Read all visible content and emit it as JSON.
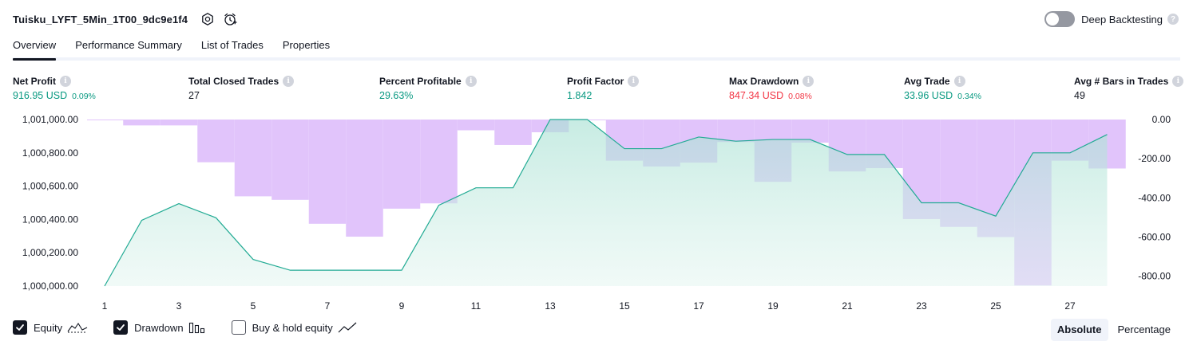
{
  "header": {
    "title": "Tuisku_LYFT_5Min_1T00_9dc9e1f4"
  },
  "deep_backtesting": {
    "label": "Deep Backtesting",
    "enabled": false
  },
  "tabs": [
    {
      "label": "Overview",
      "active": true
    },
    {
      "label": "Performance Summary",
      "active": false
    },
    {
      "label": "List of Trades",
      "active": false
    },
    {
      "label": "Properties",
      "active": false
    }
  ],
  "metrics": {
    "net_profit": {
      "label": "Net Profit",
      "value": "916.95 USD",
      "pct": "0.09%"
    },
    "total_closed_trades": {
      "label": "Total Closed Trades",
      "value": "27"
    },
    "percent_profitable": {
      "label": "Percent Profitable",
      "value": "29.63%"
    },
    "profit_factor": {
      "label": "Profit Factor",
      "value": "1.842"
    },
    "max_drawdown": {
      "label": "Max Drawdown",
      "value": "847.34 USD",
      "pct": "0.08%"
    },
    "avg_trade": {
      "label": "Avg Trade",
      "value": "33.96 USD",
      "pct": "0.34%"
    },
    "avg_bars": {
      "label": "Avg # Bars in Trades",
      "value": "49"
    }
  },
  "chart_data": {
    "type": "area",
    "x": [
      1,
      2,
      3,
      4,
      5,
      6,
      7,
      8,
      9,
      10,
      11,
      12,
      13,
      14,
      15,
      16,
      17,
      18,
      19,
      20,
      21,
      22,
      23,
      24,
      25,
      26,
      27,
      28
    ],
    "x_tick_labels": [
      "1",
      "3",
      "5",
      "7",
      "9",
      "11",
      "13",
      "15",
      "17",
      "19",
      "21",
      "23",
      "25",
      "27"
    ],
    "y_left_ticks": [
      "1,001,000.00",
      "1,000,800.00",
      "1,000,600.00",
      "1,000,400.00",
      "1,000,200.00",
      "1,000,000.00"
    ],
    "y_left_range": [
      1000000,
      1001000
    ],
    "y_right_ticks": [
      "0.00",
      "-200.00",
      "-400.00",
      "-600.00",
      "-800.00"
    ],
    "y_right_range": [
      -850,
      0
    ],
    "series": [
      {
        "name": "Equity",
        "color": "#22ab94",
        "values": [
          1000000,
          1000395,
          1000495,
          1000410,
          1000160,
          1000095,
          1000095,
          1000095,
          1000095,
          1000485,
          1000590,
          1000590,
          1001000,
          1001000,
          1000825,
          1000825,
          1000895,
          1000870,
          1000880,
          1000880,
          1000790,
          1000790,
          1000500,
          1000500,
          1000420,
          1000800,
          1000800,
          1000910
        ]
      },
      {
        "name": "Drawdown",
        "color": "#e1c4fb",
        "values": [
          -2,
          -30,
          -30,
          -218,
          -392,
          -410,
          -532,
          -598,
          -455,
          -428,
          -55,
          -130,
          -65,
          0,
          -210,
          -240,
          -220,
          -115,
          -318,
          -118,
          -265,
          -248,
          -508,
          -548,
          -600,
          -847,
          -210,
          -250
        ]
      }
    ],
    "grid": false
  },
  "legend": {
    "equity": {
      "label": "Equity",
      "checked": true
    },
    "drawdown": {
      "label": "Drawdown",
      "checked": true
    },
    "buy_hold": {
      "label": "Buy & hold equity",
      "checked": false
    }
  },
  "mode": {
    "absolute": "Absolute",
    "percentage": "Percentage",
    "selected": "Absolute"
  }
}
